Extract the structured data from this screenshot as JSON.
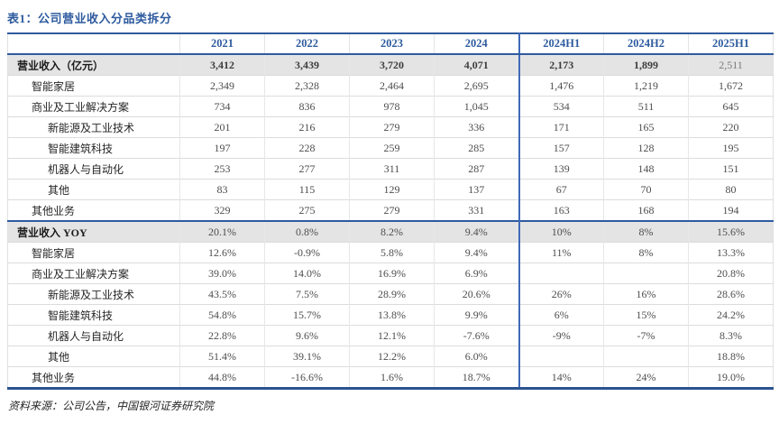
{
  "page": {
    "title": "表1：公司营业收入分品类拆分",
    "source_note": "资料来源：公司公告，中国银河证券研究院"
  },
  "colors": {
    "accent_blue": "#2E5B9F",
    "divider_blue": "#3F6AB7",
    "band_background": "#E4E4E4",
    "gridline_gray": "#DCDCDC",
    "value_text": "#4D4D4D",
    "label_text": "#262626"
  },
  "table": {
    "columns": [
      "2021",
      "2022",
      "2023",
      "2024",
      "2024H1",
      "2024H2",
      "2025H1"
    ],
    "thick_divider_before_column": "2024H1",
    "rows": [
      {
        "label": "营业收入（亿元）",
        "indent": 0,
        "band": true,
        "bold_values": true,
        "last_value_regular": true,
        "values": [
          "3,412",
          "3,439",
          "3,720",
          "4,071",
          "2,173",
          "1,899",
          "2,511"
        ]
      },
      {
        "label": "智能家居",
        "indent": 1,
        "values": [
          "2,349",
          "2,328",
          "2,464",
          "2,695",
          "1,476",
          "1,219",
          "1,672"
        ]
      },
      {
        "label": "商业及工业解决方案",
        "indent": 1,
        "values": [
          "734",
          "836",
          "978",
          "1,045",
          "534",
          "511",
          "645"
        ]
      },
      {
        "label": "新能源及工业技术",
        "indent": 2,
        "values": [
          "201",
          "216",
          "279",
          "336",
          "171",
          "165",
          "220"
        ]
      },
      {
        "label": "智能建筑科技",
        "indent": 2,
        "values": [
          "197",
          "228",
          "259",
          "285",
          "157",
          "128",
          "195"
        ]
      },
      {
        "label": "机器人与自动化",
        "indent": 2,
        "values": [
          "253",
          "277",
          "311",
          "287",
          "139",
          "148",
          "151"
        ]
      },
      {
        "label": "其他",
        "indent": 2,
        "values": [
          "83",
          "115",
          "129",
          "137",
          "67",
          "70",
          "80"
        ]
      },
      {
        "label": "其他业务",
        "indent": 1,
        "values": [
          "329",
          "275",
          "279",
          "331",
          "163",
          "168",
          "194"
        ]
      },
      {
        "label": "营业收入 YOY",
        "indent": 0,
        "band": true,
        "section_start": true,
        "values": [
          "20.1%",
          "0.8%",
          "8.2%",
          "9.4%",
          "10%",
          "8%",
          "15.6%"
        ]
      },
      {
        "label": "智能家居",
        "indent": 1,
        "values": [
          "12.6%",
          "-0.9%",
          "5.8%",
          "9.4%",
          "11%",
          "8%",
          "13.3%"
        ]
      },
      {
        "label": "商业及工业解决方案",
        "indent": 1,
        "values": [
          "39.0%",
          "14.0%",
          "16.9%",
          "6.9%",
          "",
          "",
          "20.8%"
        ]
      },
      {
        "label": "新能源及工业技术",
        "indent": 2,
        "values": [
          "43.5%",
          "7.5%",
          "28.9%",
          "20.6%",
          "26%",
          "16%",
          "28.6%"
        ]
      },
      {
        "label": "智能建筑科技",
        "indent": 2,
        "values": [
          "54.8%",
          "15.7%",
          "13.8%",
          "9.9%",
          "6%",
          "15%",
          "24.2%"
        ]
      },
      {
        "label": "机器人与自动化",
        "indent": 2,
        "values": [
          "22.8%",
          "9.6%",
          "12.1%",
          "-7.6%",
          "-9%",
          "-7%",
          "8.3%"
        ]
      },
      {
        "label": "其他",
        "indent": 2,
        "values": [
          "51.4%",
          "39.1%",
          "12.2%",
          "6.0%",
          "",
          "",
          "18.8%"
        ]
      },
      {
        "label": "其他业务",
        "indent": 1,
        "values": [
          "44.8%",
          "-16.6%",
          "1.6%",
          "18.7%",
          "14%",
          "24%",
          "19.0%"
        ]
      }
    ]
  }
}
